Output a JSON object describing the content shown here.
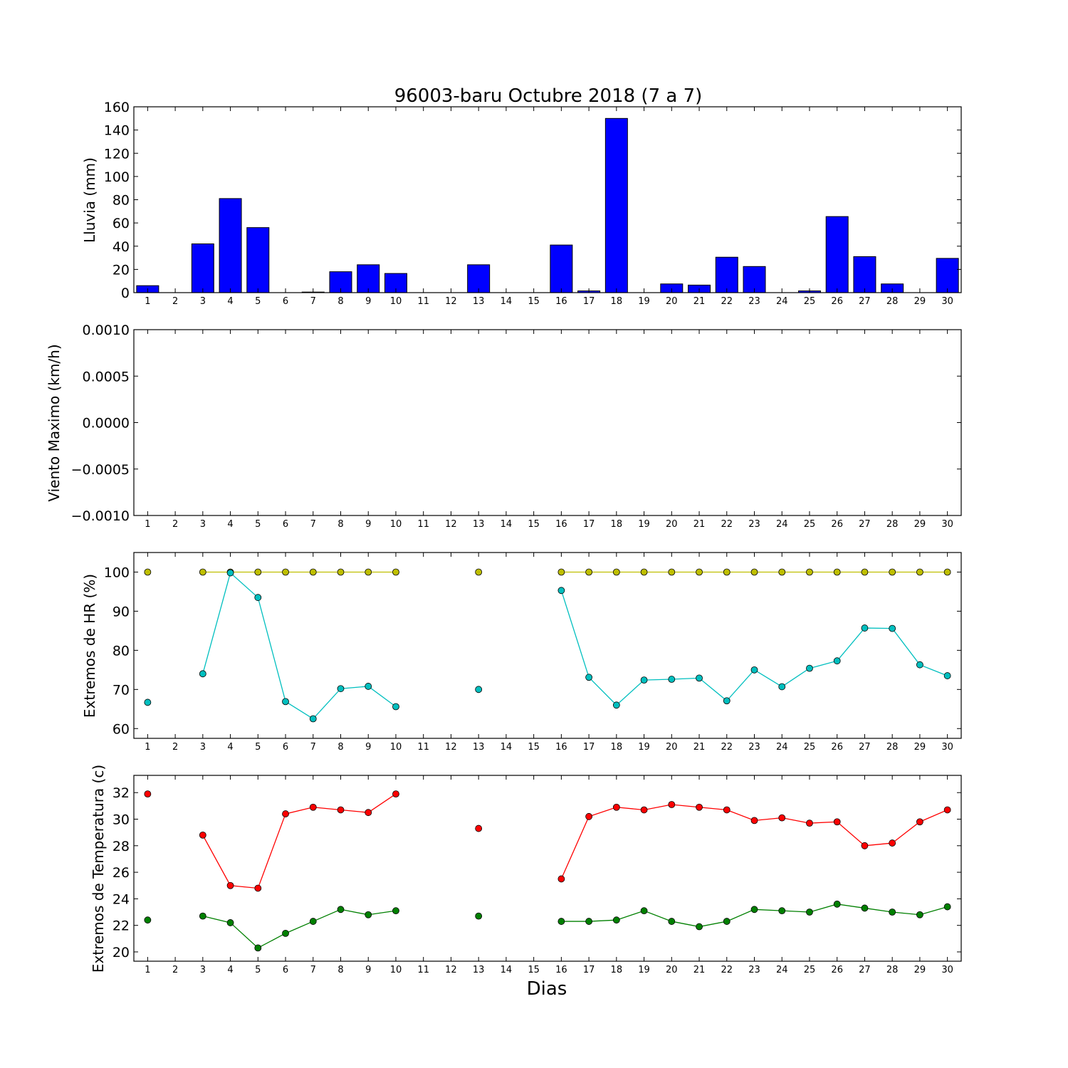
{
  "title": "96003-baru Octubre 2018  (7 a 7)",
  "xlabel": "Dias",
  "chart_data": [
    {
      "type": "bar",
      "ylabel": "Lluvia (mm)",
      "ylim": [
        0,
        160
      ],
      "yticks": [
        "0",
        "20",
        "40",
        "60",
        "80",
        "100",
        "120",
        "140",
        "160"
      ],
      "ytick_values": [
        0,
        20,
        40,
        60,
        80,
        100,
        120,
        140,
        160
      ],
      "x": [
        1,
        2,
        3,
        4,
        5,
        6,
        7,
        8,
        9,
        10,
        11,
        12,
        13,
        14,
        15,
        16,
        17,
        18,
        19,
        20,
        21,
        22,
        23,
        24,
        25,
        26,
        27,
        28,
        29,
        30
      ],
      "xticks": [
        "1",
        "2",
        "3",
        "4",
        "5",
        "6",
        "7",
        "8",
        "9",
        "10",
        "11",
        "12",
        "13",
        "14",
        "15",
        "16",
        "17",
        "18",
        "19",
        "20",
        "21",
        "22",
        "23",
        "24",
        "25",
        "26",
        "27",
        "28",
        "29",
        "30"
      ],
      "series": [
        {
          "color": "#0000ff",
          "values": [
            6,
            0,
            42,
            81,
            56,
            0,
            0.5,
            18,
            24,
            16.5,
            0,
            0,
            24,
            0,
            0,
            41,
            1.5,
            150,
            0,
            7.5,
            6.5,
            30.5,
            22.5,
            0,
            1.5,
            65.5,
            31,
            7.5,
            0,
            29.5
          ]
        }
      ]
    },
    {
      "type": "line",
      "ylabel": "Viento Maximo (km/h)",
      "ylim": [
        -0.001,
        0.001
      ],
      "yticks": [
        "0.0010",
        "0.0005",
        "0.0000",
        "−0.0005",
        "−0.0010"
      ],
      "ytick_values": [
        0.001,
        0.0005,
        0,
        -0.0005,
        -0.001
      ],
      "x": [
        1,
        2,
        3,
        4,
        5,
        6,
        7,
        8,
        9,
        10,
        11,
        12,
        13,
        14,
        15,
        16,
        17,
        18,
        19,
        20,
        21,
        22,
        23,
        24,
        25,
        26,
        27,
        28,
        29,
        30
      ],
      "xticks": [
        "1",
        "2",
        "3",
        "4",
        "5",
        "6",
        "7",
        "8",
        "9",
        "10",
        "11",
        "12",
        "13",
        "14",
        "15",
        "16",
        "17",
        "18",
        "19",
        "20",
        "21",
        "22",
        "23",
        "24",
        "25",
        "26",
        "27",
        "28",
        "29",
        "30"
      ],
      "series": []
    },
    {
      "type": "line",
      "ylabel": "Extremos de HR (%)",
      "ylim": [
        57.5,
        105
      ],
      "yticks": [
        "60",
        "70",
        "80",
        "90",
        "100"
      ],
      "ytick_values": [
        60,
        70,
        80,
        90,
        100
      ],
      "x": [
        1,
        2,
        3,
        4,
        5,
        6,
        7,
        8,
        9,
        10,
        11,
        12,
        13,
        14,
        15,
        16,
        17,
        18,
        19,
        20,
        21,
        22,
        23,
        24,
        25,
        26,
        27,
        28,
        29,
        30
      ],
      "xticks": [
        "1",
        "2",
        "3",
        "4",
        "5",
        "6",
        "7",
        "8",
        "9",
        "10",
        "11",
        "12",
        "13",
        "14",
        "15",
        "16",
        "17",
        "18",
        "19",
        "20",
        "21",
        "22",
        "23",
        "24",
        "25",
        "26",
        "27",
        "28",
        "29",
        "30"
      ],
      "series": [
        {
          "color": "#bfbf00",
          "values": [
            100,
            null,
            100,
            100,
            100,
            100,
            100,
            100,
            100,
            100,
            null,
            null,
            100,
            null,
            null,
            100,
            100,
            100,
            100,
            100,
            100,
            100,
            100,
            100,
            100,
            100,
            100,
            100,
            100,
            100
          ]
        },
        {
          "color": "#00bfbf",
          "values": [
            66.7,
            null,
            74,
            99.8,
            93.5,
            66.9,
            62.5,
            70.2,
            70.8,
            65.6,
            null,
            null,
            70,
            null,
            null,
            95.3,
            73.1,
            66,
            72.4,
            72.6,
            72.9,
            67.1,
            75,
            70.7,
            75.4,
            77.3,
            85.7,
            85.6,
            76.3,
            73.5
          ]
        }
      ]
    },
    {
      "type": "line",
      "ylabel": "Extremos de Temperatura (c)",
      "ylim": [
        19.3,
        33.3
      ],
      "yticks": [
        "20",
        "22",
        "24",
        "26",
        "28",
        "30",
        "32"
      ],
      "ytick_values": [
        20,
        22,
        24,
        26,
        28,
        30,
        32
      ],
      "x": [
        1,
        2,
        3,
        4,
        5,
        6,
        7,
        8,
        9,
        10,
        11,
        12,
        13,
        14,
        15,
        16,
        17,
        18,
        19,
        20,
        21,
        22,
        23,
        24,
        25,
        26,
        27,
        28,
        29,
        30
      ],
      "xticks": [
        "1",
        "2",
        "3",
        "4",
        "5",
        "6",
        "7",
        "8",
        "9",
        "10",
        "11",
        "12",
        "13",
        "14",
        "15",
        "16",
        "17",
        "18",
        "19",
        "20",
        "21",
        "22",
        "23",
        "24",
        "25",
        "26",
        "27",
        "28",
        "29",
        "30"
      ],
      "series": [
        {
          "color": "#ff0000",
          "values": [
            31.9,
            null,
            28.8,
            25,
            24.8,
            30.4,
            30.9,
            30.7,
            30.5,
            31.9,
            null,
            null,
            29.3,
            null,
            null,
            25.5,
            30.2,
            30.9,
            30.7,
            31.1,
            30.9,
            30.7,
            29.9,
            30.1,
            29.7,
            29.8,
            28,
            28.2,
            29.8,
            30.7
          ]
        },
        {
          "color": "#008000",
          "values": [
            22.4,
            null,
            22.7,
            22.2,
            20.3,
            21.4,
            22.3,
            23.2,
            22.8,
            23.1,
            null,
            null,
            22.7,
            null,
            null,
            22.3,
            22.3,
            22.4,
            23.1,
            22.3,
            21.9,
            22.3,
            23.2,
            23.1,
            23,
            23.6,
            23.3,
            23,
            22.8,
            23.4
          ]
        }
      ]
    }
  ]
}
